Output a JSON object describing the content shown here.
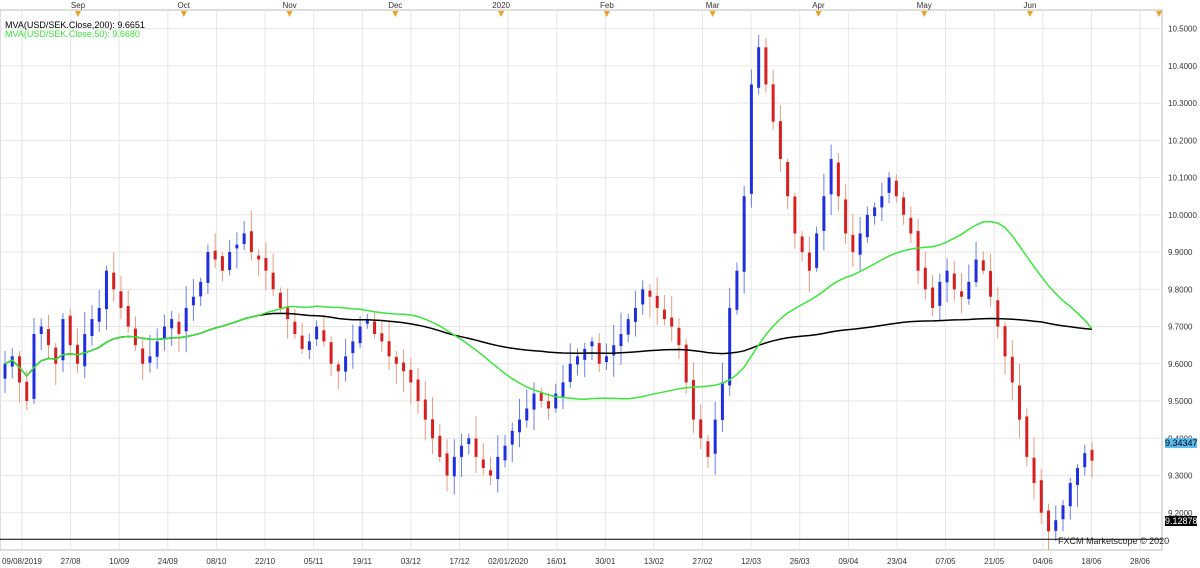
{
  "indicators": {
    "ma200_label": "MVA(USD/SEK.Close,200): 9.6651",
    "ma50_label": "MVA(USD/SEK.Close,50): 9.6680"
  },
  "copyright": "FXCM Marketscope © 2020",
  "last_price": "9.34347",
  "low_price": "9.12878",
  "colors": {
    "up": "#1f2fe0",
    "down": "#d81f1f",
    "wick_up": "#6d7fe8",
    "wick_down": "#e89a80",
    "ma50": "#39e639",
    "ma200": "#000000",
    "grid": "#e6e6e6",
    "marker": "#f0a020"
  },
  "chart_data": {
    "type": "candlestick",
    "symbol": "USD/SEK",
    "ylim": [
      9.1,
      10.55
    ],
    "y_ticks": [
      "9.2000",
      "9.3000",
      "9.4000",
      "9.5000",
      "9.6000",
      "9.7000",
      "9.8000",
      "9.9000",
      "10.0000",
      "10.1000",
      "10.2000",
      "10.3000",
      "10.4000",
      "10.5000"
    ],
    "x_ticks": [
      "09/08/2019",
      "27/08",
      "10/09",
      "24/09",
      "08/10",
      "22/10",
      "05/11",
      "19/11",
      "03/12",
      "17/12",
      "02/01/2020",
      "16/01",
      "30/01",
      "13/02",
      "27/02",
      "12/03",
      "26/03",
      "09/04",
      "23/04",
      "07/05",
      "21/05",
      "04/06",
      "18/06",
      "28/06"
    ],
    "months": [
      "Sep",
      "Oct",
      "Nov",
      "Dec",
      "2020",
      "Feb",
      "Mar",
      "Apr",
      "May",
      "Jun"
    ],
    "ohlc_close_series": [
      9.6,
      9.62,
      9.55,
      9.5,
      9.68,
      9.7,
      9.65,
      9.6,
      9.72,
      9.65,
      9.6,
      9.68,
      9.72,
      9.75,
      9.85,
      9.8,
      9.75,
      9.7,
      9.65,
      9.6,
      9.62,
      9.66,
      9.7,
      9.72,
      9.68,
      9.75,
      9.78,
      9.82,
      9.9,
      9.88,
      9.85,
      9.9,
      9.92,
      9.95,
      9.9,
      9.88,
      9.85,
      9.8,
      9.75,
      9.72,
      9.68,
      9.64,
      9.66,
      9.7,
      9.66,
      9.6,
      9.58,
      9.62,
      9.66,
      9.7,
      9.72,
      9.68,
      9.66,
      9.62,
      9.6,
      9.58,
      9.55,
      9.5,
      9.45,
      9.4,
      9.35,
      9.3,
      9.35,
      9.38,
      9.4,
      9.35,
      9.32,
      9.3,
      9.35,
      9.38,
      9.42,
      9.45,
      9.48,
      9.52,
      9.5,
      9.48,
      9.52,
      9.55,
      9.6,
      9.62,
      9.64,
      9.66,
      9.6,
      9.62,
      9.65,
      9.68,
      9.72,
      9.75,
      9.8,
      9.78,
      9.75,
      9.72,
      9.7,
      9.65,
      9.55,
      9.45,
      9.4,
      9.35,
      9.45,
      9.55,
      9.75,
      9.85,
      10.05,
      10.35,
      10.45,
      10.35,
      10.25,
      10.15,
      10.05,
      9.95,
      9.9,
      9.85,
      9.95,
      10.05,
      10.15,
      10.05,
      9.95,
      9.9,
      9.95,
      10.0,
      10.02,
      10.05,
      10.1,
      10.05,
      10.0,
      9.95,
      9.85,
      9.8,
      9.75,
      9.82,
      9.85,
      9.8,
      9.78,
      9.82,
      9.88,
      9.85,
      9.78,
      9.7,
      9.62,
      9.55,
      9.45,
      9.35,
      9.28,
      9.2,
      9.15,
      9.18,
      9.22,
      9.28,
      9.32,
      9.36,
      9.34
    ],
    "ma200_last": 9.6651,
    "ma50_last": 9.668,
    "last": 9.34347,
    "min_line": 9.12878
  }
}
